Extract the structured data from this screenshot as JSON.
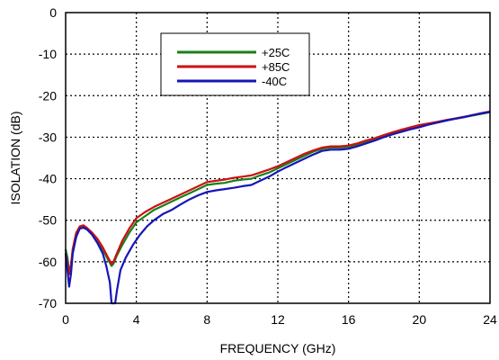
{
  "chart_data": {
    "type": "line",
    "xlabel": "FREQUENCY (GHz)",
    "ylabel": "ISOLATION (dB)",
    "xlim": [
      0,
      24
    ],
    "ylim": [
      -70,
      0
    ],
    "xticks": [
      "0",
      "4",
      "8",
      "12",
      "16",
      "20",
      "24"
    ],
    "yticks": [
      "0",
      "-10",
      "-20",
      "-30",
      "-40",
      "-50",
      "-60",
      "-70"
    ],
    "grid": true,
    "grid_style": "dotted",
    "legend_position": "top-center",
    "series": [
      {
        "name": "+25C",
        "color": "#1a7f1a",
        "points": [
          [
            0,
            -57
          ],
          [
            0.1,
            -59
          ],
          [
            0.2,
            -62
          ],
          [
            0.3,
            -61
          ],
          [
            0.4,
            -57
          ],
          [
            0.6,
            -53
          ],
          [
            0.8,
            -52
          ],
          [
            1.0,
            -51.5
          ],
          [
            1.2,
            -52
          ],
          [
            1.5,
            -53
          ],
          [
            1.8,
            -55
          ],
          [
            2.1,
            -57
          ],
          [
            2.4,
            -59.5
          ],
          [
            2.6,
            -61
          ],
          [
            2.7,
            -60.5
          ],
          [
            2.9,
            -58.5
          ],
          [
            3.2,
            -56
          ],
          [
            3.6,
            -53
          ],
          [
            4.0,
            -50.5
          ],
          [
            4.5,
            -49
          ],
          [
            5.0,
            -47.5
          ],
          [
            5.5,
            -46.5
          ],
          [
            6.0,
            -45.5
          ],
          [
            6.5,
            -44.5
          ],
          [
            7.0,
            -43.5
          ],
          [
            7.5,
            -42.5
          ],
          [
            8.0,
            -41.5
          ],
          [
            8.5,
            -41.2
          ],
          [
            9.0,
            -41
          ],
          [
            9.5,
            -40.5
          ],
          [
            10.0,
            -40.2
          ],
          [
            10.5,
            -40
          ],
          [
            11.0,
            -39.2
          ],
          [
            11.5,
            -38.5
          ],
          [
            12.0,
            -37.5
          ],
          [
            12.5,
            -36.5
          ],
          [
            13.0,
            -35.5
          ],
          [
            13.5,
            -34.5
          ],
          [
            14.0,
            -33.5
          ],
          [
            14.5,
            -32.8
          ],
          [
            15.0,
            -32.5
          ],
          [
            15.5,
            -32.5
          ],
          [
            16.0,
            -32.3
          ],
          [
            16.5,
            -31.8
          ],
          [
            17.0,
            -31.2
          ],
          [
            17.5,
            -30.5
          ],
          [
            18.0,
            -29.8
          ],
          [
            18.5,
            -29.2
          ],
          [
            19.0,
            -28.5
          ],
          [
            19.5,
            -28
          ],
          [
            20.0,
            -27.5
          ],
          [
            20.5,
            -27
          ],
          [
            21.0,
            -26.5
          ],
          [
            21.5,
            -26
          ],
          [
            22.0,
            -25.6
          ],
          [
            22.5,
            -25.2
          ],
          [
            23.0,
            -24.8
          ],
          [
            23.5,
            -24.4
          ],
          [
            24.0,
            -24
          ]
        ]
      },
      {
        "name": "+85C",
        "color": "#cc1111",
        "points": [
          [
            0,
            -58
          ],
          [
            0.1,
            -60
          ],
          [
            0.2,
            -63
          ],
          [
            0.3,
            -61
          ],
          [
            0.4,
            -57
          ],
          [
            0.6,
            -53
          ],
          [
            0.8,
            -51.5
          ],
          [
            1.0,
            -51.2
          ],
          [
            1.2,
            -51.8
          ],
          [
            1.5,
            -53
          ],
          [
            1.8,
            -54.5
          ],
          [
            2.1,
            -56.5
          ],
          [
            2.4,
            -59
          ],
          [
            2.6,
            -60.5
          ],
          [
            2.7,
            -60
          ],
          [
            2.9,
            -58
          ],
          [
            3.2,
            -55
          ],
          [
            3.6,
            -52
          ],
          [
            4.0,
            -49.5
          ],
          [
            4.5,
            -48
          ],
          [
            5.0,
            -46.8
          ],
          [
            5.5,
            -45.8
          ],
          [
            6.0,
            -44.8
          ],
          [
            6.5,
            -43.8
          ],
          [
            7.0,
            -42.8
          ],
          [
            7.5,
            -41.8
          ],
          [
            8.0,
            -40.8
          ],
          [
            8.5,
            -40.5
          ],
          [
            9.0,
            -40.2
          ],
          [
            9.5,
            -39.8
          ],
          [
            10.0,
            -39.5
          ],
          [
            10.5,
            -39.2
          ],
          [
            11.0,
            -38.5
          ],
          [
            11.5,
            -37.8
          ],
          [
            12.0,
            -37
          ],
          [
            12.5,
            -36
          ],
          [
            13.0,
            -35
          ],
          [
            13.5,
            -34
          ],
          [
            14.0,
            -33.2
          ],
          [
            14.5,
            -32.5
          ],
          [
            15.0,
            -32.2
          ],
          [
            15.5,
            -32.2
          ],
          [
            16.0,
            -32
          ],
          [
            16.5,
            -31.5
          ],
          [
            17.0,
            -30.8
          ],
          [
            17.5,
            -30.2
          ],
          [
            18.0,
            -29.5
          ],
          [
            18.5,
            -28.8
          ],
          [
            19.0,
            -28.2
          ],
          [
            19.5,
            -27.6
          ],
          [
            20.0,
            -27.1
          ],
          [
            20.5,
            -26.7
          ],
          [
            21.0,
            -26.3
          ],
          [
            21.5,
            -25.9
          ],
          [
            22.0,
            -25.5
          ],
          [
            22.5,
            -25.1
          ],
          [
            23.0,
            -24.7
          ],
          [
            23.5,
            -24.2
          ],
          [
            24.0,
            -23.8
          ]
        ]
      },
      {
        "name": "-40C",
        "color": "#1515b8",
        "points": [
          [
            0,
            -58
          ],
          [
            0.1,
            -62
          ],
          [
            0.2,
            -66
          ],
          [
            0.3,
            -63
          ],
          [
            0.4,
            -58
          ],
          [
            0.6,
            -54
          ],
          [
            0.8,
            -52
          ],
          [
            1.0,
            -51.8
          ],
          [
            1.2,
            -52.2
          ],
          [
            1.5,
            -53.5
          ],
          [
            1.8,
            -55.5
          ],
          [
            2.1,
            -58
          ],
          [
            2.3,
            -61
          ],
          [
            2.5,
            -65
          ],
          [
            2.6,
            -70
          ],
          [
            2.8,
            -70
          ],
          [
            2.9,
            -67
          ],
          [
            3.1,
            -62
          ],
          [
            3.4,
            -59
          ],
          [
            3.8,
            -56
          ],
          [
            4.2,
            -53.5
          ],
          [
            4.6,
            -51.5
          ],
          [
            5.0,
            -50
          ],
          [
            5.5,
            -48.5
          ],
          [
            6.0,
            -47.5
          ],
          [
            6.5,
            -46.2
          ],
          [
            7.0,
            -45
          ],
          [
            7.5,
            -44
          ],
          [
            8.0,
            -43.2
          ],
          [
            8.5,
            -42.8
          ],
          [
            9.0,
            -42.5
          ],
          [
            9.5,
            -42.2
          ],
          [
            10.0,
            -41.8
          ],
          [
            10.5,
            -41.5
          ],
          [
            11.0,
            -40.5
          ],
          [
            11.5,
            -39.5
          ],
          [
            12.0,
            -38.3
          ],
          [
            12.5,
            -37.2
          ],
          [
            13.0,
            -36.2
          ],
          [
            13.5,
            -35.2
          ],
          [
            14.0,
            -34.2
          ],
          [
            14.5,
            -33.3
          ],
          [
            15.0,
            -33
          ],
          [
            15.5,
            -33
          ],
          [
            16.0,
            -32.8
          ],
          [
            16.5,
            -32.2
          ],
          [
            17.0,
            -31.5
          ],
          [
            17.5,
            -30.8
          ],
          [
            18.0,
            -30
          ],
          [
            18.5,
            -29.3
          ],
          [
            19.0,
            -28.7
          ],
          [
            19.5,
            -28.1
          ],
          [
            20.0,
            -27.6
          ],
          [
            20.5,
            -27
          ],
          [
            21.0,
            -26.5
          ],
          [
            21.5,
            -26
          ],
          [
            22.0,
            -25.6
          ],
          [
            22.5,
            -25.2
          ],
          [
            23.0,
            -24.7
          ],
          [
            23.5,
            -24.3
          ],
          [
            24.0,
            -23.9
          ]
        ]
      }
    ]
  }
}
